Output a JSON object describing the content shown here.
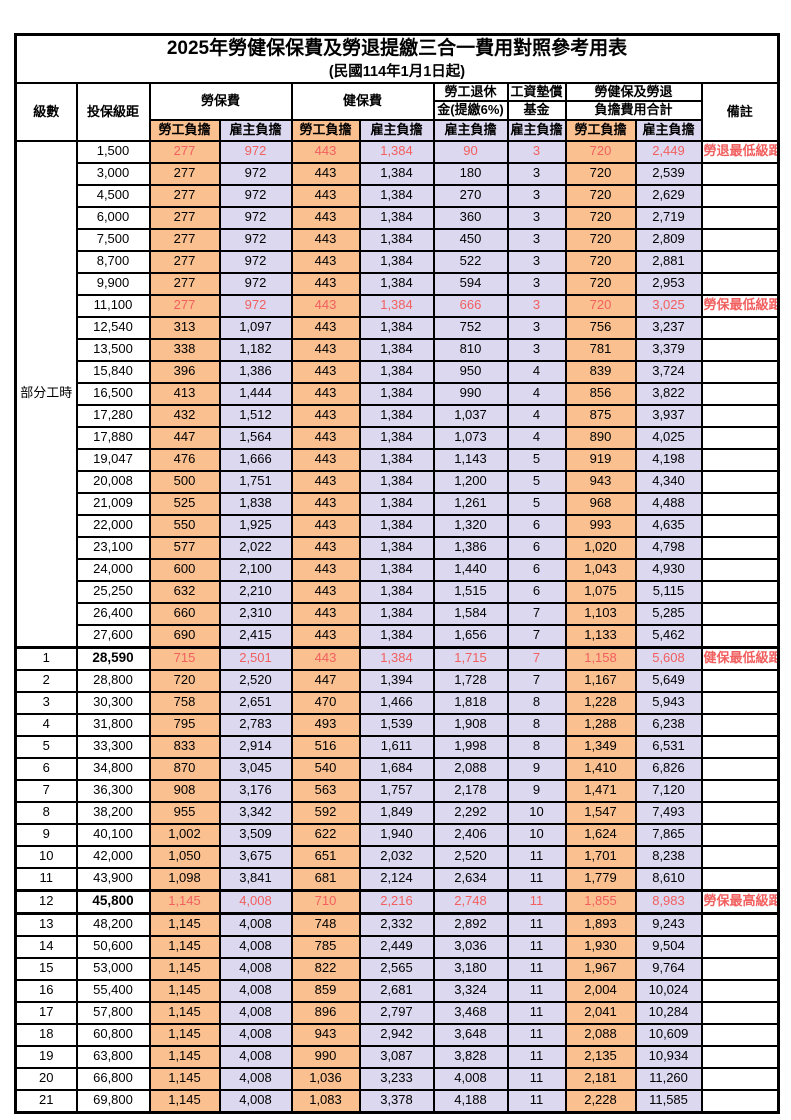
{
  "title": "2025年勞健保保費及勞退提繳三合一費用對照參考用表",
  "subtitle": "(民國114年1月1日起)",
  "colors": {
    "employee_col_bg": "#FAC090",
    "employer_col_bg": "#DBD8EF",
    "highlight_text": "#f25f5f",
    "border": "#000000"
  },
  "header": {
    "level": "級數",
    "bracket": "投保級距",
    "labor_fee": "勞保費",
    "health_fee": "健保費",
    "pension_line1": "勞工退休",
    "pension_line2": "金(提繳6%)",
    "wage_fund_line1": "工資墊償",
    "wage_fund_line2": "基金",
    "total_line1": "勞健保及勞退",
    "total_line2": "負擔費用合計",
    "remark": "備註",
    "employee": "勞工負擔",
    "employer": "雇主負擔"
  },
  "part_time": {
    "label": "部分工時",
    "rowspan": 23
  },
  "rows": [
    {
      "level": "",
      "bracket": "1,500",
      "v": [
        "277",
        "972",
        "443",
        "1,384",
        "90",
        "3",
        "720",
        "2,449"
      ],
      "remark": "勞退最低級距",
      "hl": true
    },
    {
      "level": "",
      "bracket": "3,000",
      "v": [
        "277",
        "972",
        "443",
        "1,384",
        "180",
        "3",
        "720",
        "2,539"
      ],
      "remark": ""
    },
    {
      "level": "",
      "bracket": "4,500",
      "v": [
        "277",
        "972",
        "443",
        "1,384",
        "270",
        "3",
        "720",
        "2,629"
      ],
      "remark": ""
    },
    {
      "level": "",
      "bracket": "6,000",
      "v": [
        "277",
        "972",
        "443",
        "1,384",
        "360",
        "3",
        "720",
        "2,719"
      ],
      "remark": ""
    },
    {
      "level": "",
      "bracket": "7,500",
      "v": [
        "277",
        "972",
        "443",
        "1,384",
        "450",
        "3",
        "720",
        "2,809"
      ],
      "remark": ""
    },
    {
      "level": "",
      "bracket": "8,700",
      "v": [
        "277",
        "972",
        "443",
        "1,384",
        "522",
        "3",
        "720",
        "2,881"
      ],
      "remark": ""
    },
    {
      "level": "",
      "bracket": "9,900",
      "v": [
        "277",
        "972",
        "443",
        "1,384",
        "594",
        "3",
        "720",
        "2,953"
      ],
      "remark": ""
    },
    {
      "level": "",
      "bracket": "11,100",
      "v": [
        "277",
        "972",
        "443",
        "1,384",
        "666",
        "3",
        "720",
        "3,025"
      ],
      "remark": "勞保最低級距",
      "hl": true
    },
    {
      "level": "",
      "bracket": "12,540",
      "v": [
        "313",
        "1,097",
        "443",
        "1,384",
        "752",
        "3",
        "756",
        "3,237"
      ],
      "remark": ""
    },
    {
      "level": "",
      "bracket": "13,500",
      "v": [
        "338",
        "1,182",
        "443",
        "1,384",
        "810",
        "3",
        "781",
        "3,379"
      ],
      "remark": ""
    },
    {
      "level": "",
      "bracket": "15,840",
      "v": [
        "396",
        "1,386",
        "443",
        "1,384",
        "950",
        "4",
        "839",
        "3,724"
      ],
      "remark": ""
    },
    {
      "level": "",
      "bracket": "16,500",
      "v": [
        "413",
        "1,444",
        "443",
        "1,384",
        "990",
        "4",
        "856",
        "3,822"
      ],
      "remark": ""
    },
    {
      "level": "",
      "bracket": "17,280",
      "v": [
        "432",
        "1,512",
        "443",
        "1,384",
        "1,037",
        "4",
        "875",
        "3,937"
      ],
      "remark": ""
    },
    {
      "level": "",
      "bracket": "17,880",
      "v": [
        "447",
        "1,564",
        "443",
        "1,384",
        "1,073",
        "4",
        "890",
        "4,025"
      ],
      "remark": ""
    },
    {
      "level": "",
      "bracket": "19,047",
      "v": [
        "476",
        "1,666",
        "443",
        "1,384",
        "1,143",
        "5",
        "919",
        "4,198"
      ],
      "remark": ""
    },
    {
      "level": "",
      "bracket": "20,008",
      "v": [
        "500",
        "1,751",
        "443",
        "1,384",
        "1,200",
        "5",
        "943",
        "4,340"
      ],
      "remark": ""
    },
    {
      "level": "",
      "bracket": "21,009",
      "v": [
        "525",
        "1,838",
        "443",
        "1,384",
        "1,261",
        "5",
        "968",
        "4,488"
      ],
      "remark": ""
    },
    {
      "level": "",
      "bracket": "22,000",
      "v": [
        "550",
        "1,925",
        "443",
        "1,384",
        "1,320",
        "6",
        "993",
        "4,635"
      ],
      "remark": ""
    },
    {
      "level": "",
      "bracket": "23,100",
      "v": [
        "577",
        "2,022",
        "443",
        "1,384",
        "1,386",
        "6",
        "1,020",
        "4,798"
      ],
      "remark": ""
    },
    {
      "level": "",
      "bracket": "24,000",
      "v": [
        "600",
        "2,100",
        "443",
        "1,384",
        "1,440",
        "6",
        "1,043",
        "4,930"
      ],
      "remark": ""
    },
    {
      "level": "",
      "bracket": "25,250",
      "v": [
        "632",
        "2,210",
        "443",
        "1,384",
        "1,515",
        "6",
        "1,075",
        "5,115"
      ],
      "remark": ""
    },
    {
      "level": "",
      "bracket": "26,400",
      "v": [
        "660",
        "2,310",
        "443",
        "1,384",
        "1,584",
        "7",
        "1,103",
        "5,285"
      ],
      "remark": ""
    },
    {
      "level": "",
      "bracket": "27,600",
      "v": [
        "690",
        "2,415",
        "443",
        "1,384",
        "1,656",
        "7",
        "1,133",
        "5,462"
      ],
      "remark": ""
    },
    {
      "level": "1",
      "bracket": "28,590",
      "v": [
        "715",
        "2,501",
        "443",
        "1,384",
        "1,715",
        "7",
        "1,158",
        "5,608"
      ],
      "remark": "健保最低級距",
      "hl": true,
      "bold": true
    },
    {
      "level": "2",
      "bracket": "28,800",
      "v": [
        "720",
        "2,520",
        "447",
        "1,394",
        "1,728",
        "7",
        "1,167",
        "5,649"
      ],
      "remark": ""
    },
    {
      "level": "3",
      "bracket": "30,300",
      "v": [
        "758",
        "2,651",
        "470",
        "1,466",
        "1,818",
        "8",
        "1,228",
        "5,943"
      ],
      "remark": ""
    },
    {
      "level": "4",
      "bracket": "31,800",
      "v": [
        "795",
        "2,783",
        "493",
        "1,539",
        "1,908",
        "8",
        "1,288",
        "6,238"
      ],
      "remark": ""
    },
    {
      "level": "5",
      "bracket": "33,300",
      "v": [
        "833",
        "2,914",
        "516",
        "1,611",
        "1,998",
        "8",
        "1,349",
        "6,531"
      ],
      "remark": ""
    },
    {
      "level": "6",
      "bracket": "34,800",
      "v": [
        "870",
        "3,045",
        "540",
        "1,684",
        "2,088",
        "9",
        "1,410",
        "6,826"
      ],
      "remark": ""
    },
    {
      "level": "7",
      "bracket": "36,300",
      "v": [
        "908",
        "3,176",
        "563",
        "1,757",
        "2,178",
        "9",
        "1,471",
        "7,120"
      ],
      "remark": ""
    },
    {
      "level": "8",
      "bracket": "38,200",
      "v": [
        "955",
        "3,342",
        "592",
        "1,849",
        "2,292",
        "10",
        "1,547",
        "7,493"
      ],
      "remark": ""
    },
    {
      "level": "9",
      "bracket": "40,100",
      "v": [
        "1,002",
        "3,509",
        "622",
        "1,940",
        "2,406",
        "10",
        "1,624",
        "7,865"
      ],
      "remark": ""
    },
    {
      "level": "10",
      "bracket": "42,000",
      "v": [
        "1,050",
        "3,675",
        "651",
        "2,032",
        "2,520",
        "11",
        "1,701",
        "8,238"
      ],
      "remark": ""
    },
    {
      "level": "11",
      "bracket": "43,900",
      "v": [
        "1,098",
        "3,841",
        "681",
        "2,124",
        "2,634",
        "11",
        "1,779",
        "8,610"
      ],
      "remark": ""
    },
    {
      "level": "12",
      "bracket": "45,800",
      "v": [
        "1,145",
        "4,008",
        "710",
        "2,216",
        "2,748",
        "11",
        "1,855",
        "8,983"
      ],
      "remark": "勞保最高級距",
      "hl": true,
      "bold": true
    },
    {
      "level": "13",
      "bracket": "48,200",
      "v": [
        "1,145",
        "4,008",
        "748",
        "2,332",
        "2,892",
        "11",
        "1,893",
        "9,243"
      ],
      "remark": ""
    },
    {
      "level": "14",
      "bracket": "50,600",
      "v": [
        "1,145",
        "4,008",
        "785",
        "2,449",
        "3,036",
        "11",
        "1,930",
        "9,504"
      ],
      "remark": ""
    },
    {
      "level": "15",
      "bracket": "53,000",
      "v": [
        "1,145",
        "4,008",
        "822",
        "2,565",
        "3,180",
        "11",
        "1,967",
        "9,764"
      ],
      "remark": ""
    },
    {
      "level": "16",
      "bracket": "55,400",
      "v": [
        "1,145",
        "4,008",
        "859",
        "2,681",
        "3,324",
        "11",
        "2,004",
        "10,024"
      ],
      "remark": ""
    },
    {
      "level": "17",
      "bracket": "57,800",
      "v": [
        "1,145",
        "4,008",
        "896",
        "2,797",
        "3,468",
        "11",
        "2,041",
        "10,284"
      ],
      "remark": ""
    },
    {
      "level": "18",
      "bracket": "60,800",
      "v": [
        "1,145",
        "4,008",
        "943",
        "2,942",
        "3,648",
        "11",
        "2,088",
        "10,609"
      ],
      "remark": ""
    },
    {
      "level": "19",
      "bracket": "63,800",
      "v": [
        "1,145",
        "4,008",
        "990",
        "3,087",
        "3,828",
        "11",
        "2,135",
        "10,934"
      ],
      "remark": ""
    },
    {
      "level": "20",
      "bracket": "66,800",
      "v": [
        "1,145",
        "4,008",
        "1,036",
        "3,233",
        "4,008",
        "11",
        "2,181",
        "11,260"
      ],
      "remark": ""
    },
    {
      "level": "21",
      "bracket": "69,800",
      "v": [
        "1,145",
        "4,008",
        "1,083",
        "3,378",
        "4,188",
        "11",
        "2,228",
        "11,585"
      ],
      "remark": ""
    }
  ]
}
